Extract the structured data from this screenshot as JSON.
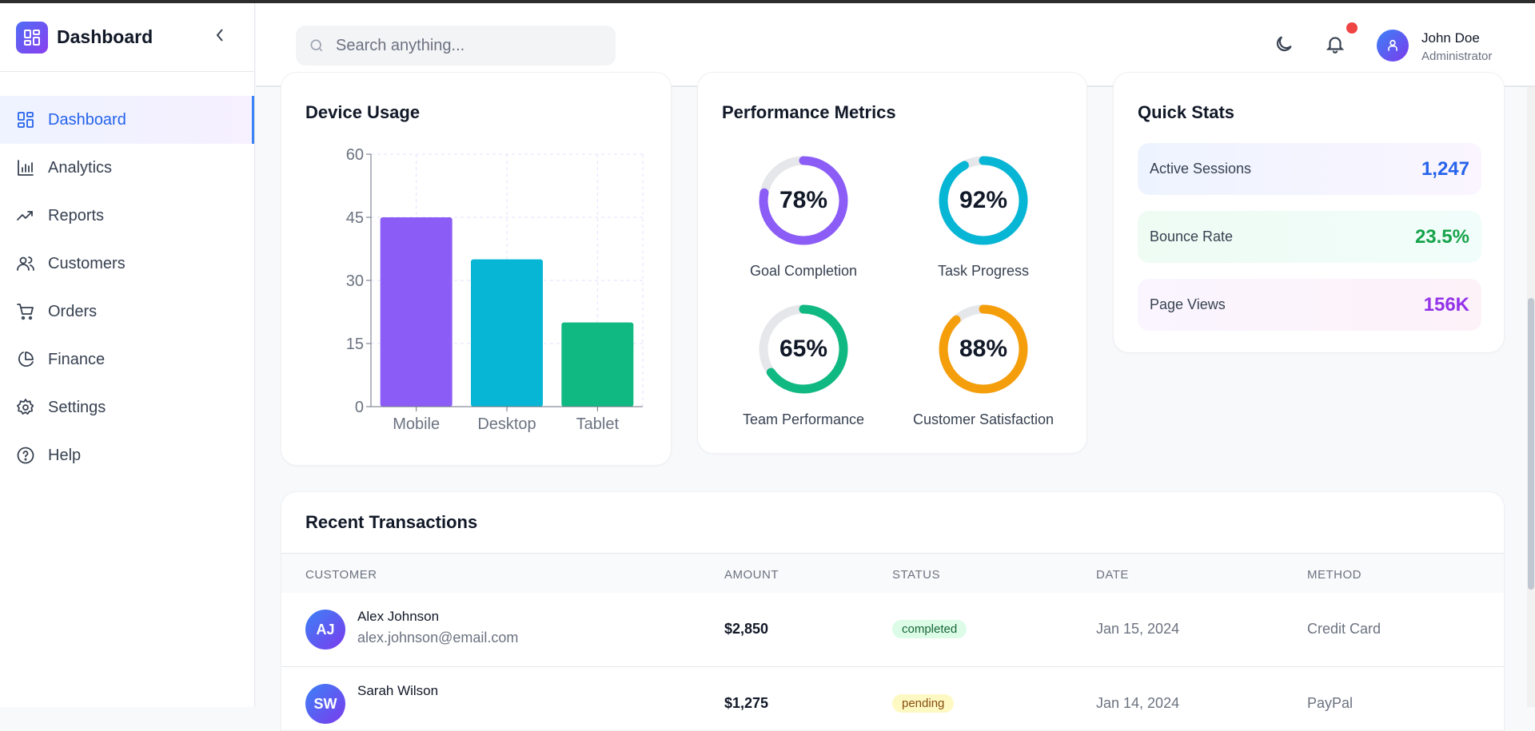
{
  "brand": {
    "title": "Dashboard"
  },
  "sidebar": {
    "items": [
      {
        "label": "Dashboard",
        "icon": "grid-icon",
        "active": true
      },
      {
        "label": "Analytics",
        "icon": "bar-chart-icon"
      },
      {
        "label": "Reports",
        "icon": "trending-up-icon"
      },
      {
        "label": "Customers",
        "icon": "users-icon"
      },
      {
        "label": "Orders",
        "icon": "cart-icon"
      },
      {
        "label": "Finance",
        "icon": "pie-chart-icon"
      },
      {
        "label": "Settings",
        "icon": "gear-icon"
      },
      {
        "label": "Help",
        "icon": "help-circle-icon"
      }
    ]
  },
  "header": {
    "search_placeholder": "Search anything...",
    "user_name": "John Doe",
    "user_role": "Administrator",
    "notification_dot_color": "#ef4444"
  },
  "device_usage": {
    "title": "Device Usage"
  },
  "chart_data": {
    "type": "bar",
    "categories": [
      "Mobile",
      "Desktop",
      "Tablet"
    ],
    "values": [
      45,
      35,
      20
    ],
    "colors": [
      "#8b5cf6",
      "#06b6d4",
      "#10b981"
    ],
    "ylim": [
      0,
      60
    ],
    "yticks": [
      "0",
      "15",
      "30",
      "45",
      "60"
    ],
    "grid": true,
    "title": "Device Usage"
  },
  "performance": {
    "title": "Performance Metrics",
    "metrics": [
      {
        "label": "Goal Completion",
        "value": "78%",
        "pct": 78,
        "color": "#8b5cf6"
      },
      {
        "label": "Task Progress",
        "value": "92%",
        "pct": 92,
        "color": "#06b6d4"
      },
      {
        "label": "Team Performance",
        "value": "65%",
        "pct": 65,
        "color": "#10b981"
      },
      {
        "label": "Customer Satisfaction",
        "value": "88%",
        "pct": 88,
        "color": "#f59e0b"
      }
    ]
  },
  "quick_stats": {
    "title": "Quick Stats",
    "items": [
      {
        "label": "Active Sessions",
        "value": "1,247",
        "color": "#2563eb"
      },
      {
        "label": "Bounce Rate",
        "value": "23.5%",
        "color": "#16a34a"
      },
      {
        "label": "Page Views",
        "value": "156K",
        "color": "#9333ea"
      }
    ]
  },
  "transactions": {
    "title": "Recent Transactions",
    "columns": [
      "CUSTOMER",
      "AMOUNT",
      "STATUS",
      "DATE",
      "METHOD"
    ],
    "rows": [
      {
        "initials": "AJ",
        "name": "Alex Johnson",
        "email": "alex.johnson@email.com",
        "amount": "$2,850",
        "status": "completed",
        "date": "Jan 15, 2024",
        "method": "Credit Card"
      },
      {
        "initials": "SW",
        "name": "Sarah Wilson",
        "email": "",
        "amount": "$1,275",
        "status": "pending",
        "date": "Jan 14, 2024",
        "method": "PayPal"
      }
    ]
  }
}
